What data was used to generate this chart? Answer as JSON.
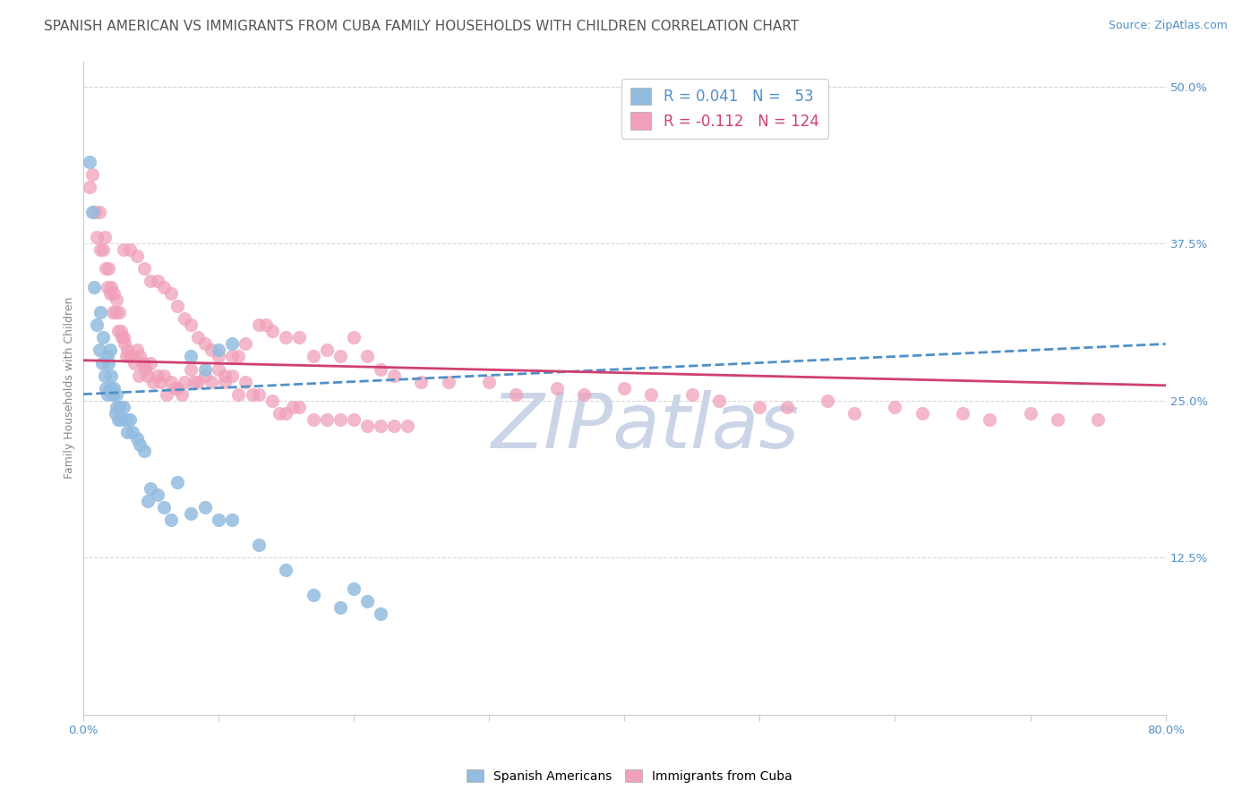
{
  "title": "SPANISH AMERICAN VS IMMIGRANTS FROM CUBA FAMILY HOUSEHOLDS WITH CHILDREN CORRELATION CHART",
  "source": "Source: ZipAtlas.com",
  "ylabel": "Family Households with Children",
  "xlim": [
    0.0,
    0.8
  ],
  "ylim": [
    0.0,
    0.52
  ],
  "xtick_positions": [
    0.0,
    0.1,
    0.2,
    0.3,
    0.4,
    0.5,
    0.6,
    0.7,
    0.8
  ],
  "xtick_labels": [
    "0.0%",
    "",
    "",
    "",
    "",
    "",
    "",
    "",
    "80.0%"
  ],
  "yticks_right": [
    0.125,
    0.25,
    0.375,
    0.5
  ],
  "ytick_right_labels": [
    "12.5%",
    "25.0%",
    "37.5%",
    "50.0%"
  ],
  "blue_scatter_x": [
    0.005,
    0.007,
    0.008,
    0.01,
    0.012,
    0.013,
    0.014,
    0.015,
    0.016,
    0.017,
    0.018,
    0.018,
    0.019,
    0.02,
    0.02,
    0.021,
    0.022,
    0.023,
    0.024,
    0.025,
    0.025,
    0.026,
    0.027,
    0.028,
    0.03,
    0.032,
    0.033,
    0.035,
    0.037,
    0.04,
    0.042,
    0.045,
    0.048,
    0.05,
    0.055,
    0.06,
    0.065,
    0.07,
    0.08,
    0.09,
    0.1,
    0.11,
    0.13,
    0.15,
    0.17,
    0.19,
    0.2,
    0.21,
    0.22,
    0.08,
    0.09,
    0.1,
    0.11
  ],
  "blue_scatter_y": [
    0.44,
    0.4,
    0.34,
    0.31,
    0.29,
    0.32,
    0.28,
    0.3,
    0.27,
    0.26,
    0.285,
    0.255,
    0.28,
    0.26,
    0.29,
    0.27,
    0.255,
    0.26,
    0.24,
    0.255,
    0.245,
    0.235,
    0.245,
    0.235,
    0.245,
    0.235,
    0.225,
    0.235,
    0.225,
    0.22,
    0.215,
    0.21,
    0.17,
    0.18,
    0.175,
    0.165,
    0.155,
    0.185,
    0.16,
    0.165,
    0.155,
    0.155,
    0.135,
    0.115,
    0.095,
    0.085,
    0.1,
    0.09,
    0.08,
    0.285,
    0.275,
    0.29,
    0.295
  ],
  "pink_scatter_x": [
    0.005,
    0.007,
    0.009,
    0.01,
    0.012,
    0.013,
    0.015,
    0.016,
    0.017,
    0.018,
    0.019,
    0.02,
    0.021,
    0.022,
    0.023,
    0.024,
    0.025,
    0.026,
    0.027,
    0.028,
    0.029,
    0.03,
    0.031,
    0.032,
    0.033,
    0.035,
    0.037,
    0.038,
    0.04,
    0.041,
    0.042,
    0.044,
    0.045,
    0.046,
    0.048,
    0.05,
    0.052,
    0.055,
    0.057,
    0.06,
    0.062,
    0.065,
    0.068,
    0.07,
    0.073,
    0.075,
    0.08,
    0.082,
    0.085,
    0.09,
    0.095,
    0.1,
    0.105,
    0.11,
    0.115,
    0.12,
    0.13,
    0.135,
    0.14,
    0.15,
    0.16,
    0.17,
    0.18,
    0.19,
    0.2,
    0.21,
    0.22,
    0.23,
    0.25,
    0.27,
    0.3,
    0.32,
    0.35,
    0.37,
    0.4,
    0.42,
    0.45,
    0.47,
    0.5,
    0.52,
    0.55,
    0.57,
    0.6,
    0.62,
    0.65,
    0.67,
    0.7,
    0.72,
    0.75,
    0.03,
    0.035,
    0.04,
    0.045,
    0.05,
    0.055,
    0.06,
    0.065,
    0.07,
    0.075,
    0.08,
    0.085,
    0.09,
    0.095,
    0.1,
    0.105,
    0.11,
    0.115,
    0.12,
    0.125,
    0.13,
    0.14,
    0.145,
    0.15,
    0.155,
    0.16,
    0.17,
    0.18,
    0.19,
    0.2,
    0.21,
    0.22,
    0.23,
    0.24
  ],
  "pink_scatter_y": [
    0.42,
    0.43,
    0.4,
    0.38,
    0.4,
    0.37,
    0.37,
    0.38,
    0.355,
    0.34,
    0.355,
    0.335,
    0.34,
    0.32,
    0.335,
    0.32,
    0.33,
    0.305,
    0.32,
    0.305,
    0.3,
    0.3,
    0.295,
    0.285,
    0.29,
    0.285,
    0.285,
    0.28,
    0.29,
    0.27,
    0.285,
    0.28,
    0.28,
    0.275,
    0.27,
    0.28,
    0.265,
    0.27,
    0.265,
    0.27,
    0.255,
    0.265,
    0.26,
    0.26,
    0.255,
    0.265,
    0.275,
    0.265,
    0.265,
    0.27,
    0.265,
    0.275,
    0.265,
    0.285,
    0.285,
    0.295,
    0.31,
    0.31,
    0.305,
    0.3,
    0.3,
    0.285,
    0.29,
    0.285,
    0.3,
    0.285,
    0.275,
    0.27,
    0.265,
    0.265,
    0.265,
    0.255,
    0.26,
    0.255,
    0.26,
    0.255,
    0.255,
    0.25,
    0.245,
    0.245,
    0.25,
    0.24,
    0.245,
    0.24,
    0.24,
    0.235,
    0.24,
    0.235,
    0.235,
    0.37,
    0.37,
    0.365,
    0.355,
    0.345,
    0.345,
    0.34,
    0.335,
    0.325,
    0.315,
    0.31,
    0.3,
    0.295,
    0.29,
    0.285,
    0.27,
    0.27,
    0.255,
    0.265,
    0.255,
    0.255,
    0.25,
    0.24,
    0.24,
    0.245,
    0.245,
    0.235,
    0.235,
    0.235,
    0.235,
    0.23,
    0.23,
    0.23,
    0.23
  ],
  "trend_blue_x0": 0.0,
  "trend_blue_x1": 0.8,
  "trend_blue_y0": 0.255,
  "trend_blue_y1": 0.295,
  "trend_pink_x0": 0.0,
  "trend_pink_x1": 0.8,
  "trend_pink_y0": 0.282,
  "trend_pink_y1": 0.262,
  "blue_scatter_color": "#92bce0",
  "pink_scatter_color": "#f0a0b8",
  "blue_line_color": "#5090c8",
  "pink_line_color": "#d04070",
  "watermark": "ZIPatlas",
  "watermark_color": "#ccd4e8",
  "background_color": "#ffffff",
  "grid_color": "#d8d8d8",
  "title_fontsize": 11,
  "source_fontsize": 9,
  "axis_label_fontsize": 9,
  "tick_fontsize": 9.5,
  "legend_fontsize": 12
}
